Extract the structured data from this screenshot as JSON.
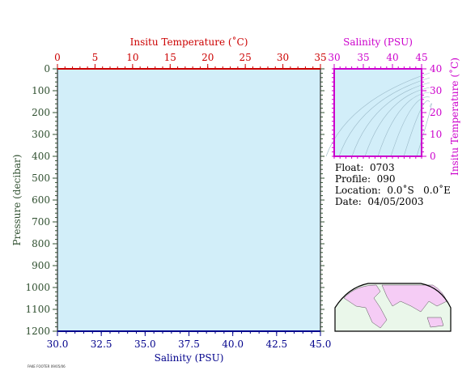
{
  "colors": {
    "plot_bg": "#d2eef9",
    "temp_axis": "#cc0000",
    "sal_axis": "#00008b",
    "pressure_axis": "#2f4f2f",
    "inset_axis": "#cc00cc",
    "land": "#f5ccf5",
    "ocean": "#eaf7ea"
  },
  "chart_data": [
    {
      "type": "line",
      "title": "",
      "top_axis": {
        "label": "Insitu Temperature (˚C)",
        "range": [
          0,
          35
        ],
        "ticks": [
          "0",
          "5",
          "10",
          "15",
          "20",
          "25",
          "30",
          "35"
        ]
      },
      "bottom_axis": {
        "label": "Salinity (PSU)",
        "range": [
          30.0,
          45.0
        ],
        "ticks": [
          "30.0",
          "32.5",
          "35.0",
          "37.5",
          "40.0",
          "42.5",
          "45.0"
        ]
      },
      "left_axis": {
        "label": "Pressure (decibar)",
        "range": [
          0,
          1200
        ],
        "inverted": true,
        "ticks": [
          "0",
          "100",
          "200",
          "300",
          "400",
          "500",
          "600",
          "700",
          "800",
          "900",
          "1000",
          "1100",
          "1200"
        ]
      },
      "series": []
    },
    {
      "type": "scatter",
      "title": "",
      "top_axis": {
        "label": "Salinity (PSU)",
        "range": [
          30,
          45
        ],
        "ticks": [
          "30",
          "35",
          "40",
          "45"
        ]
      },
      "right_axis": {
        "label": "Insitu Temperature (˚C)",
        "range": [
          0,
          40
        ],
        "ticks": [
          "0",
          "10",
          "20",
          "30",
          "40"
        ]
      },
      "density_contours": true,
      "series": []
    }
  ],
  "info": {
    "float": "Float:  0703",
    "profile": "Profile:  090",
    "location": "Location:  0.0˚S   0.0˚E",
    "date": "Date:  04/05/2003"
  },
  "map": {
    "icon": "world-map-icon"
  },
  "footer_small": "FAKE FOOTER 09/05/06"
}
